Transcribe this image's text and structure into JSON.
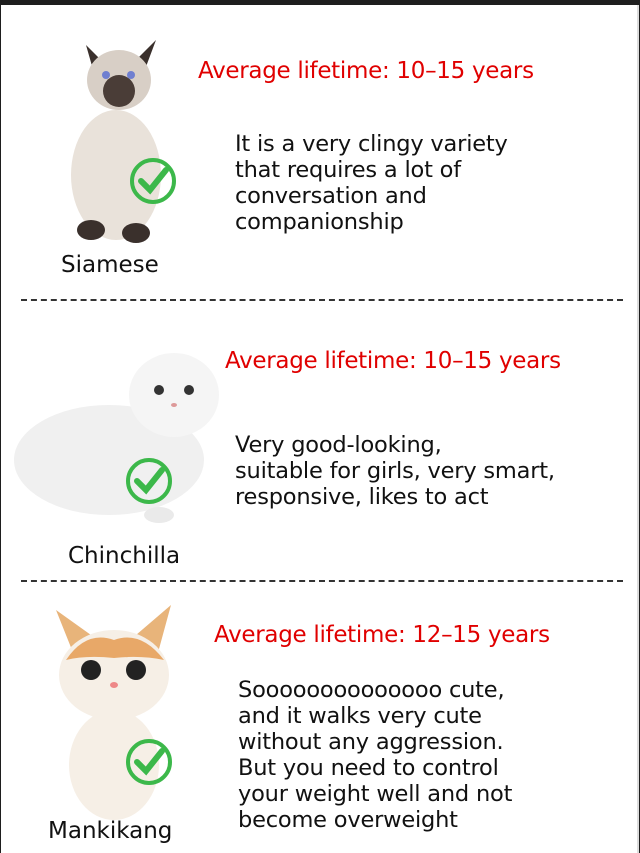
{
  "colors": {
    "lifetime": "#e00000",
    "check": "#3cb84a",
    "text": "#111111"
  },
  "breeds": [
    {
      "name": "Siamese",
      "lifetime": "Average lifetime: 10–15 years",
      "description": "It is a very clingy variety\nthat requires a lot of\nconversation and\ncompanionship",
      "icon": "check-circle-icon"
    },
    {
      "name": "Chinchilla",
      "lifetime": "Average lifetime: 10–15 years",
      "description": "Very good-looking,\nsuitable for girls, very smart,\nresponsive, likes to act",
      "icon": "check-circle-icon"
    },
    {
      "name": "Mankikang",
      "lifetime": "Average lifetime: 12–15 years",
      "description": " Soooooooooooooo cute,\nand it walks very cute\nwithout any aggression.\nBut you need to control\nyour weight well and not\nbecome overweight",
      "icon": "check-circle-icon"
    }
  ]
}
